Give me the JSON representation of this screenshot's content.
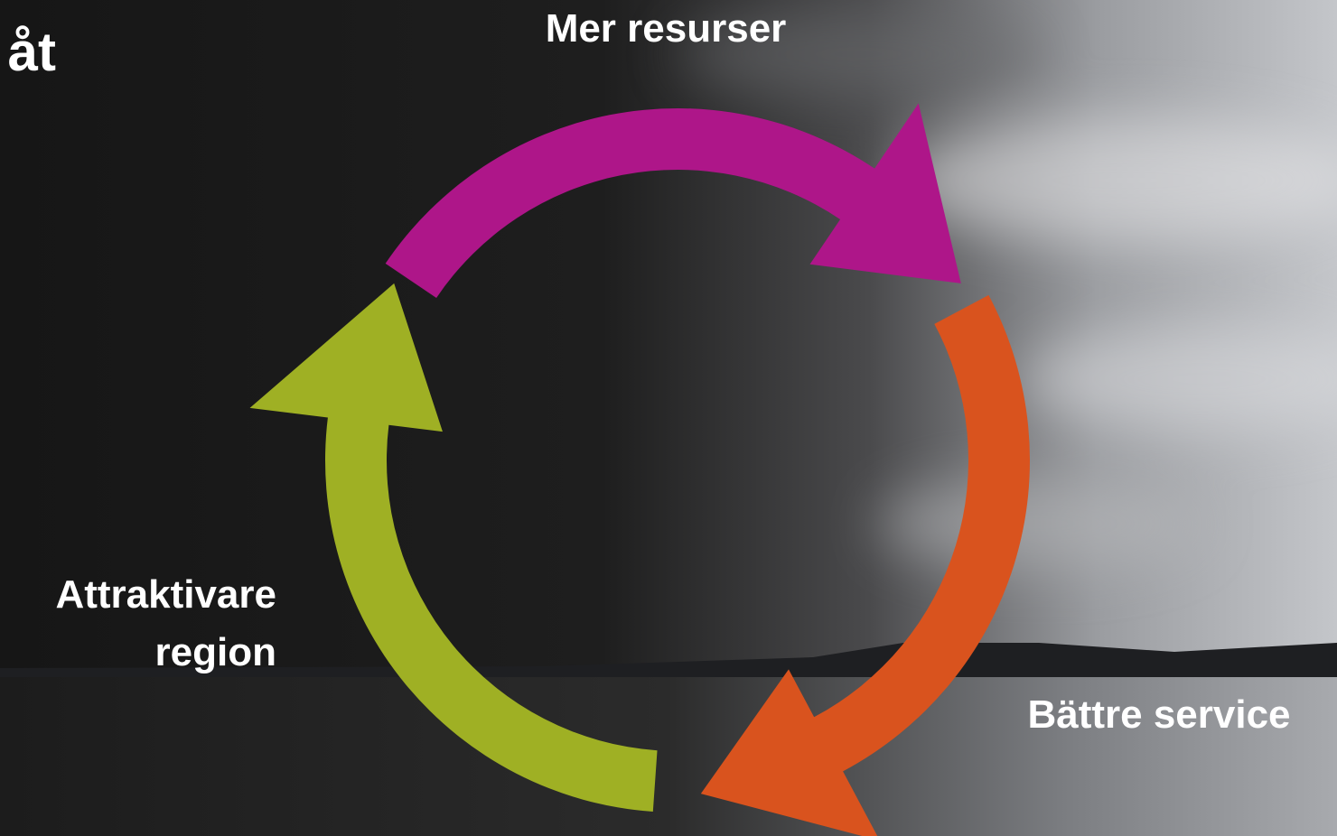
{
  "title": "åt",
  "cycle": {
    "steps": [
      {
        "label": [
          "Mer resurser"
        ]
      },
      {
        "label": [
          "Bättre service"
        ]
      },
      {
        "label": [
          "Attraktivare",
          "region"
        ]
      }
    ]
  }
}
